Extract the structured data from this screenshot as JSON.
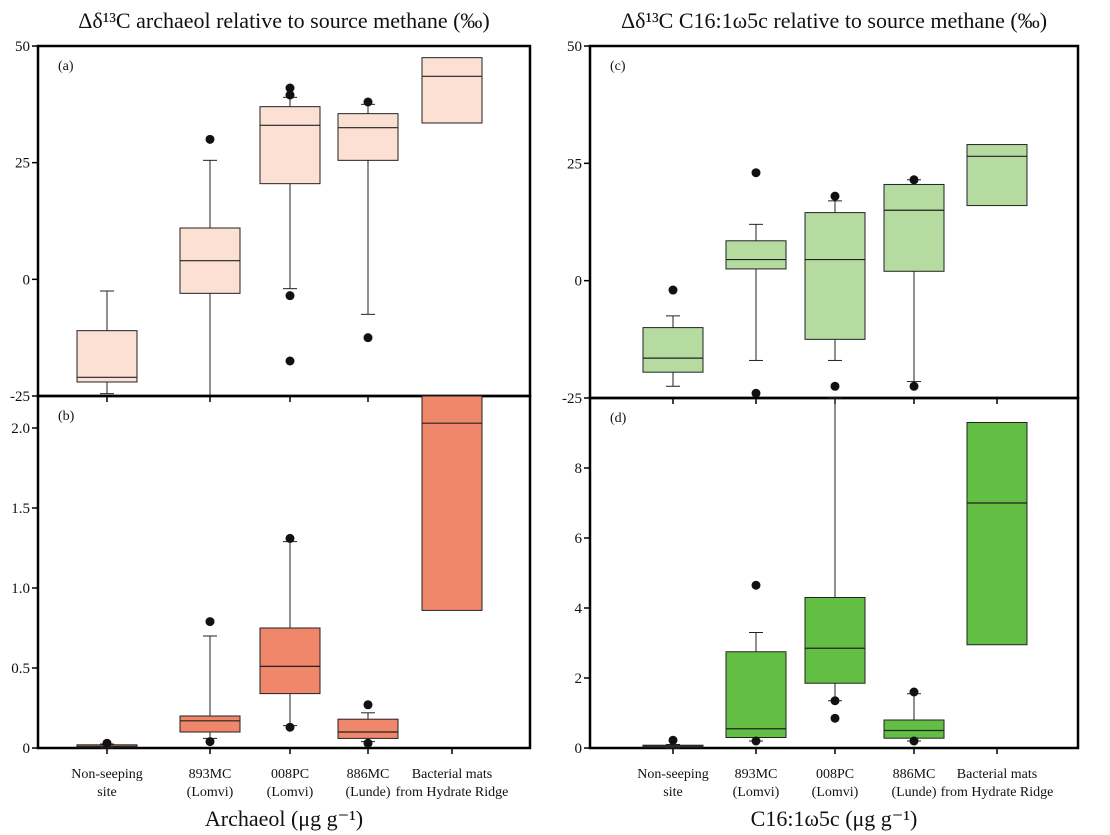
{
  "chart_data": [
    {
      "type": "box",
      "panel": "(a)",
      "title": "Δδ¹³C archaeol relative to source methane (‰)",
      "ylim": [
        -25,
        50
      ],
      "yticks": [
        -25,
        0,
        25,
        50
      ],
      "categories": [
        "Non-seeping site",
        "893MC (Lomvi)",
        "008PC (Lomvi)",
        "886MC (Lunde)",
        "Bacterial mats from Hydrate Ridge"
      ],
      "color": "#fbe0d3",
      "boxes": [
        {
          "whisker_low": -24.5,
          "q1": -22,
          "median": -21,
          "q3": -11,
          "whisker_high": -2.5,
          "outliers": []
        },
        {
          "whisker_low": -25,
          "q1": -3,
          "median": 4,
          "q3": 11,
          "whisker_high": 25.5,
          "outliers": [
            30
          ]
        },
        {
          "whisker_low": -2,
          "q1": 20.5,
          "median": 33,
          "q3": 37,
          "whisker_high": 39,
          "outliers": [
            -3.5,
            -17.5,
            39.5,
            41
          ]
        },
        {
          "whisker_low": -7.5,
          "q1": 25.5,
          "median": 32.5,
          "q3": 35.5,
          "whisker_high": 37.5,
          "outliers": [
            -12.5,
            38
          ]
        },
        {
          "whisker_low": null,
          "q1": 33.5,
          "median": 43.5,
          "q3": 47.5,
          "whisker_high": null,
          "outliers": []
        }
      ]
    },
    {
      "type": "box",
      "panel": "(b)",
      "xlabel": "Archaeol (μg g⁻¹)",
      "ylim": [
        0,
        2.2
      ],
      "yticks": [
        0,
        0.5,
        1.0,
        1.5,
        2.0
      ],
      "ytick_labels": [
        "0",
        "0.5",
        "1.0",
        "1.5",
        "2.0"
      ],
      "categories": [
        "Non-seeping site",
        "893MC (Lomvi)",
        "008PC (Lomvi)",
        "886MC (Lunde)",
        "Bacterial mats from Hydrate Ridge"
      ],
      "color": "#f0866a",
      "boxes": [
        {
          "whisker_low": 0,
          "q1": 0.005,
          "median": 0.01,
          "q3": 0.02,
          "whisker_high": 0.025,
          "outliers": [
            0.03
          ]
        },
        {
          "whisker_low": 0.06,
          "q1": 0.1,
          "median": 0.17,
          "q3": 0.2,
          "whisker_high": 0.7,
          "outliers": [
            0.04,
            0.79
          ]
        },
        {
          "whisker_low": 0.14,
          "q1": 0.34,
          "median": 0.51,
          "q3": 0.75,
          "whisker_high": 1.29,
          "outliers": [
            0.13,
            1.31
          ]
        },
        {
          "whisker_low": 0.04,
          "q1": 0.06,
          "median": 0.1,
          "q3": 0.18,
          "whisker_high": 0.22,
          "outliers": [
            0.03,
            0.27
          ]
        },
        {
          "whisker_low": null,
          "q1": 0.86,
          "median": 2.03,
          "q3": 2.2,
          "whisker_high": null,
          "outliers": []
        }
      ]
    },
    {
      "type": "box",
      "panel": "(c)",
      "title": "Δδ¹³C C16:1ω5c relative to source methane (‰)",
      "ylim": [
        -25,
        50
      ],
      "yticks": [
        -25,
        0,
        25,
        50
      ],
      "categories": [
        "Non-seeping site",
        "893MC (Lomvi)",
        "008PC (Lomvi)",
        "886MC (Lunde)",
        "Bacterial mats from Hydrate Ridge"
      ],
      "color": "#b5dba0",
      "boxes": [
        {
          "whisker_low": -22.5,
          "q1": -19.5,
          "median": -16.5,
          "q3": -10,
          "whisker_high": -7.5,
          "outliers": [
            -2
          ]
        },
        {
          "whisker_low": -17,
          "q1": 2.5,
          "median": 4.5,
          "q3": 8.5,
          "whisker_high": 12,
          "outliers": [
            -24,
            23
          ]
        },
        {
          "whisker_low": -17,
          "q1": -12.5,
          "median": 4.5,
          "q3": 14.5,
          "whisker_high": 17,
          "outliers": [
            -22.5,
            18
          ]
        },
        {
          "whisker_low": -21.5,
          "q1": 2,
          "median": 15,
          "q3": 20.5,
          "whisker_high": 21.5,
          "outliers": [
            -22.5,
            21.5
          ]
        },
        {
          "whisker_low": null,
          "q1": 16,
          "median": 26.5,
          "q3": 29,
          "whisker_high": null,
          "outliers": []
        }
      ]
    },
    {
      "type": "box",
      "panel": "(d)",
      "xlabel": "C16:1ω5c (μg g⁻¹)",
      "ylim": [
        0,
        10
      ],
      "yticks": [
        0,
        2,
        4,
        6,
        8
      ],
      "ytick_labels": [
        "0",
        "2",
        "4",
        "6",
        "8"
      ],
      "categories": [
        "Non-seeping site",
        "893MC (Lomvi)",
        "008PC (Lomvi)",
        "886MC (Lunde)",
        "Bacterial mats from Hydrate Ridge"
      ],
      "color": "#62bf43",
      "boxes": [
        {
          "whisker_low": 0,
          "q1": 0.02,
          "median": 0.05,
          "q3": 0.08,
          "whisker_high": 0.1,
          "outliers": [
            0.22
          ]
        },
        {
          "whisker_low": 0.2,
          "q1": 0.3,
          "median": 0.55,
          "q3": 2.75,
          "whisker_high": 3.3,
          "outliers": [
            0.2,
            4.65
          ]
        },
        {
          "whisker_low": 1.35,
          "q1": 1.85,
          "median": 2.85,
          "q3": 4.3,
          "whisker_high": 10,
          "outliers": [
            0.85,
            1.35
          ]
        },
        {
          "whisker_low": 0.2,
          "q1": 0.28,
          "median": 0.5,
          "q3": 0.8,
          "whisker_high": 1.55,
          "outliers": [
            0.2,
            1.6
          ]
        },
        {
          "whisker_low": null,
          "q1": 2.95,
          "median": 7,
          "q3": 9.3,
          "whisker_high": null,
          "outliers": []
        }
      ]
    }
  ],
  "x_category_lines": [
    [
      "Non-seeping",
      "site"
    ],
    [
      "893MC",
      "(Lomvi)"
    ],
    [
      "008PC",
      "(Lomvi)"
    ],
    [
      "886MC",
      "(Lunde)"
    ],
    [
      "Bacterial mats",
      "from Hydrate Ridge"
    ]
  ]
}
